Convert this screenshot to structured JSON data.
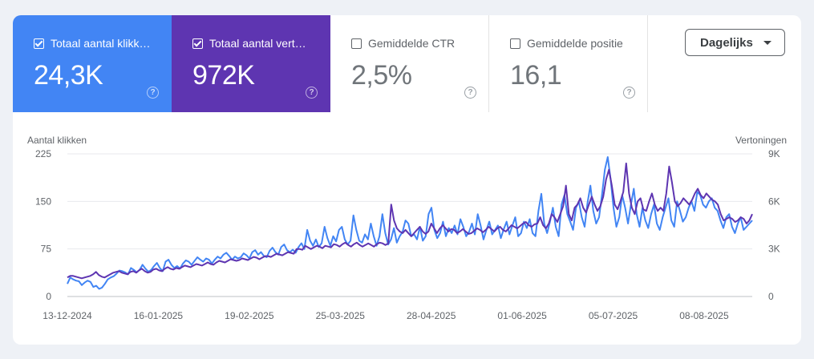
{
  "metrics": [
    {
      "label": "Totaal aantal klikk…",
      "value": "24,3K",
      "checked": true
    },
    {
      "label": "Totaal aantal vert…",
      "value": "972K",
      "checked": true
    },
    {
      "label": "Gemiddelde CTR",
      "value": "2,5%",
      "checked": false
    },
    {
      "label": "Gemiddelde positie",
      "value": "16,1",
      "checked": false
    }
  ],
  "help_glyph": "?",
  "dropdown": {
    "label": "Dagelijks"
  },
  "colors": {
    "clicks": "#4285f4",
    "impressions": "#5e35b1"
  },
  "chart_data": {
    "type": "line",
    "ylabel_left": "Aantal klikken",
    "ylabel_right": "Vertoningen",
    "ylim_left": [
      0,
      225
    ],
    "ylim_right": [
      0,
      9000
    ],
    "yticks_left": [
      "0",
      "75",
      "150",
      "225"
    ],
    "yticks_right": [
      "0",
      "3K",
      "6K",
      "9K"
    ],
    "xlim": [
      "2024-12-13",
      "2025-08-26"
    ],
    "xticks": [
      "13-12-2024",
      "16-01-2025",
      "19-02-2025",
      "25-03-2025",
      "28-04-2025",
      "01-06-2025",
      "05-07-2025",
      "08-08-2025"
    ],
    "grid": true,
    "series": [
      {
        "name": "Totaal aantal klikken",
        "axis": "left",
        "color": "#4285f4",
        "values": [
          20,
          30,
          27,
          25,
          24,
          18,
          22,
          25,
          23,
          15,
          17,
          12,
          14,
          20,
          27,
          30,
          32,
          36,
          41,
          40,
          38,
          35,
          45,
          42,
          38,
          42,
          50,
          44,
          39,
          42,
          48,
          53,
          45,
          40,
          55,
          58,
          50,
          45,
          48,
          44,
          52,
          57,
          55,
          50,
          56,
          62,
          58,
          55,
          60,
          58,
          52,
          58,
          63,
          60,
          66,
          69,
          64,
          58,
          63,
          60,
          62,
          68,
          65,
          60,
          70,
          73,
          66,
          70,
          64,
          62,
          72,
          77,
          70,
          66,
          78,
          82,
          73,
          70,
          74,
          69,
          78,
          84,
          75,
          105,
          88,
          80,
          90,
          78,
          84,
          110,
          92,
          80,
          95,
          87,
          105,
          110,
          90,
          82,
          88,
          128,
          105,
          88,
          85,
          98,
          90,
          115,
          95,
          80,
          95,
          130,
          100,
          82,
          90,
          108,
          85,
          95,
          102,
          120,
          115,
          95,
          98,
          90,
          110,
          88,
          95,
          130,
          140,
          105,
          92,
          100,
          118,
          95,
          108,
          100,
          112,
          98,
          122,
          110,
          95,
          102,
          115,
          98,
          130,
          112,
          90,
          105,
          118,
          98,
          105,
          112,
          92,
          106,
          118,
          98,
          112,
          125,
          95,
          100,
          118,
          108,
          122,
          100,
          95,
          135,
          162,
          115,
          100,
          118,
          140,
          110,
          95,
          145,
          160,
          130,
          118,
          105,
          140,
          150,
          125,
          110,
          148,
          175,
          135,
          115,
          125,
          160,
          200,
          220,
          185,
          140,
          110,
          125,
          160,
          140,
          115,
          145,
          170,
          130,
          110,
          140,
          120,
          108,
          130,
          145,
          115,
          105,
          125,
          140,
          155,
          120,
          110,
          150,
          135,
          118,
          125,
          140,
          150,
          135,
          165,
          160,
          145,
          140,
          150,
          155,
          140,
          135,
          120,
          108,
          125,
          130,
          110,
          100,
          115,
          125,
          105,
          110,
          115,
          120
        ],
        "note": "y values in clicks"
      },
      {
        "name": "Totaal aantal vertoningen",
        "axis": "right",
        "color": "#5e35b1",
        "values": [
          1200,
          1300,
          1300,
          1250,
          1200,
          1150,
          1200,
          1250,
          1300,
          1400,
          1550,
          1350,
          1250,
          1200,
          1300,
          1400,
          1500,
          1550,
          1600,
          1500,
          1450,
          1400,
          1550,
          1600,
          1500,
          1650,
          1750,
          1600,
          1500,
          1550,
          1700,
          1750,
          1650,
          1600,
          1750,
          1850,
          1750,
          1700,
          1800,
          1750,
          1850,
          1950,
          1900,
          1850,
          1950,
          2050,
          2000,
          1950,
          2050,
          2150,
          2050,
          2000,
          2150,
          2250,
          2200,
          2150,
          2250,
          2350,
          2300,
          2250,
          2300,
          2400,
          2350,
          2300,
          2400,
          2500,
          2450,
          2350,
          2450,
          2550,
          2550,
          2500,
          2600,
          2700,
          2650,
          2600,
          2700,
          2800,
          2750,
          2700,
          3000,
          3000,
          2950,
          3200,
          3100,
          3000,
          3100,
          3200,
          3150,
          3050,
          3200,
          3150,
          3100,
          3300,
          3250,
          3150,
          3300,
          3400,
          3250,
          3150,
          3300,
          3400,
          3250,
          3150,
          3250,
          3350,
          3250,
          3150,
          3300,
          3400,
          3350,
          3250,
          3350,
          5800,
          4800,
          4300,
          4100,
          4000,
          4200,
          4000,
          3800,
          4000,
          4200,
          4400,
          4100,
          3950,
          4100,
          4600,
          4300,
          4000,
          4300,
          4500,
          4300,
          4100,
          4250,
          4200,
          4000,
          4100,
          4250,
          4100,
          3950,
          4000,
          4150,
          4300,
          4200,
          4050,
          4200,
          4400,
          4250,
          4100,
          4300,
          4400,
          4200,
          4100,
          4300,
          4500,
          4400,
          4300,
          4450,
          4600,
          4700,
          4500,
          4400,
          4550,
          4600,
          5000,
          4500,
          4300,
          4600,
          5200,
          5000,
          4700,
          5200,
          5700,
          7000,
          5200,
          4800,
          5600,
          5800,
          6200,
          5600,
          5300,
          5800,
          6300,
          5800,
          5400,
          5700,
          6300,
          7400,
          8000,
          7000,
          5800,
          5500,
          6000,
          6600,
          8400,
          6500,
          5600,
          5200,
          6000,
          6200,
          5500,
          5400,
          6000,
          6500,
          5800,
          5400,
          5600,
          5400,
          6500,
          8200,
          7200,
          6000,
          5700,
          5900,
          6200,
          6000,
          5800,
          6100,
          6500,
          6800,
          6400,
          6200,
          6500,
          6300,
          6100,
          6000,
          5800,
          5200,
          4800,
          4900,
          5000,
          4900,
          4700,
          4800,
          5000,
          4900,
          4600,
          4800,
          5200
        ]
      }
    ]
  }
}
